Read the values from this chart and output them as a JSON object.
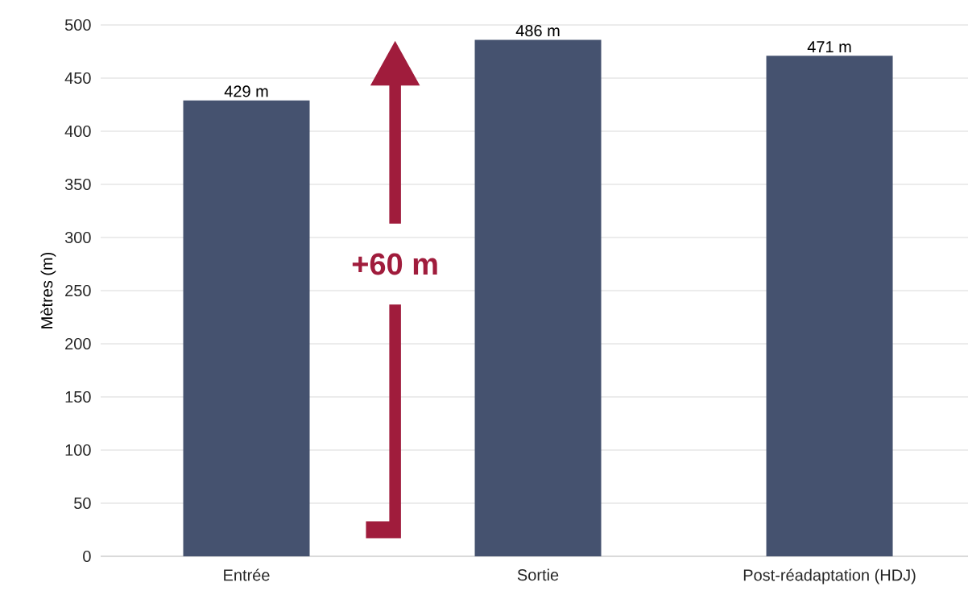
{
  "chart_data": {
    "type": "bar",
    "ylabel": "Mètres (m)",
    "categories": [
      "Entrée",
      "Sortie",
      "Post-réadaptation (HDJ)"
    ],
    "values": [
      429,
      486,
      471
    ],
    "color": "#45526f",
    "value_labels": [
      "429 m",
      "486 m",
      "471 m"
    ],
    "ylim": [
      0,
      500
    ],
    "yticks": [
      0,
      50,
      100,
      150,
      200,
      250,
      300,
      350,
      400,
      450,
      500
    ],
    "grid": "y",
    "annotations": [
      "+60 m"
    ]
  }
}
